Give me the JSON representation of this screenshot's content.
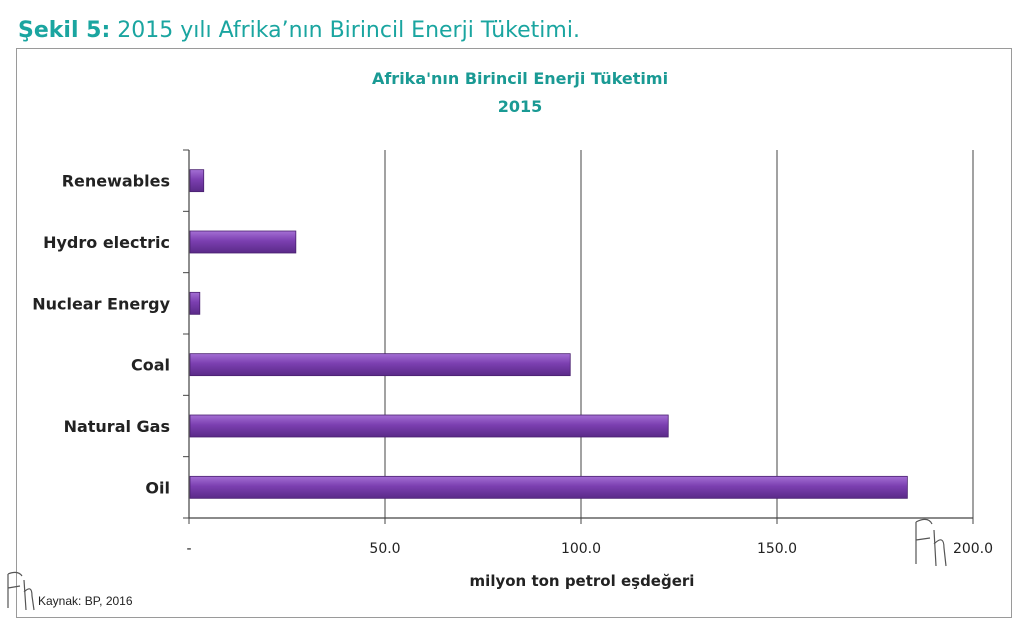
{
  "figure": {
    "caption_prefix": "Şekil 5:",
    "caption_text": " 2015 yılı Afrika’nın Birincil Enerji Tüketimi."
  },
  "source": "Kaynak: BP, 2016",
  "colors": {
    "bar": "#7b3fb0",
    "title": "#1a9a94",
    "caption": "#1aa5a0"
  },
  "chart_data": {
    "type": "bar",
    "orientation": "horizontal",
    "title": "Afrika'nın Birincil Enerji Tüketimi",
    "subtitle": "2015",
    "categories": [
      "Renewables",
      "Hydro electric",
      "Nuclear Energy",
      "Coal",
      "Natural Gas",
      "Oil"
    ],
    "values": [
      3.5,
      27.0,
      2.5,
      97.0,
      122.0,
      183.0
    ],
    "xlabel": "milyon ton petrol eşdeğeri",
    "ylabel": "",
    "xlim": [
      0,
      200
    ],
    "xticks": [
      0,
      50,
      100,
      150,
      200
    ],
    "xtick_labels": [
      "-",
      "50.0",
      "100.0",
      "150.0",
      "200.0"
    ],
    "grid": "vertical",
    "legend": "none"
  }
}
